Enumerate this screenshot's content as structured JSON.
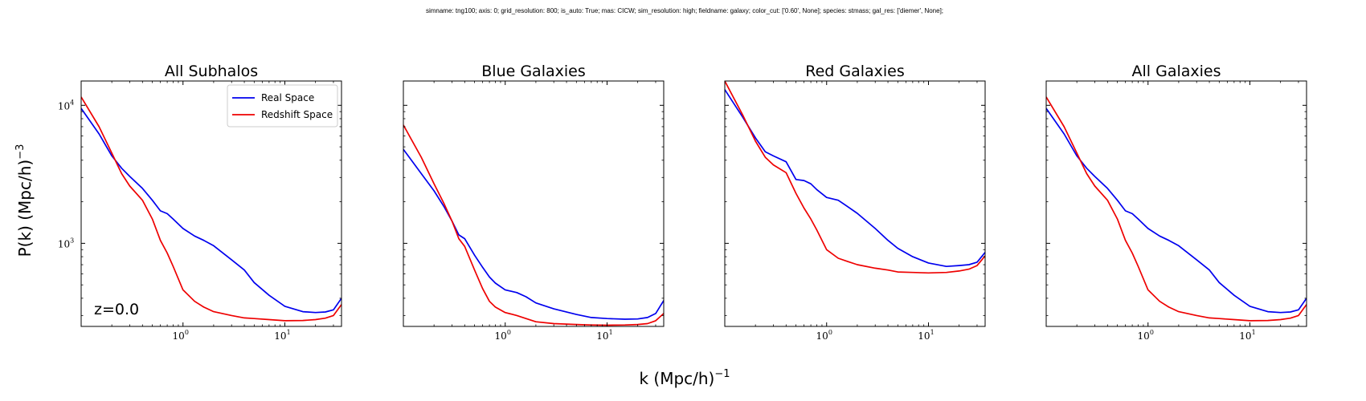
{
  "figure": {
    "suptitle": "simname: tng100; axis: 0; grid_resolution: 800; is_auto: True; mas: CICW; sim_resolution: high; fieldname: galaxy; color_cut: ['0.60', None]; species: stmass; gal_res: ['diemer', None];",
    "ylabel": "P(k) (Mpc/h)",
    "ylabel_exp": "−3",
    "xlabel": "k (Mpc/h)",
    "xlabel_exp": "−1"
  },
  "chart_data": [
    {
      "type": "line",
      "title": "All Subhalos",
      "xscale": "log",
      "yscale": "log",
      "xlim": [
        0.1,
        36
      ],
      "ylim": [
        250,
        15000
      ],
      "xticks": [
        {
          "base": "10",
          "exp": "0",
          "value": 1
        },
        {
          "base": "10",
          "exp": "1",
          "value": 10
        }
      ],
      "yticks": [
        {
          "base": "10",
          "exp": "3",
          "value": 1000
        },
        {
          "base": "10",
          "exp": "4",
          "value": 10000
        }
      ],
      "legend": {
        "position": "upper-right",
        "entries": [
          "Real Space",
          "Redshift Space"
        ]
      },
      "annotation": "z=0.0",
      "series": [
        {
          "name": "Real Space",
          "color": "#0000ee",
          "x": [
            0.1,
            0.15,
            0.2,
            0.25,
            0.3,
            0.4,
            0.5,
            0.6,
            0.7,
            0.8,
            1.0,
            1.3,
            1.6,
            2.0,
            3.0,
            4.0,
            5.0,
            7.0,
            10,
            15,
            20,
            25,
            30,
            36
          ],
          "y": [
            9500,
            6200,
            4300,
            3500,
            3050,
            2500,
            2050,
            1720,
            1640,
            1500,
            1280,
            1130,
            1050,
            960,
            760,
            640,
            520,
            420,
            350,
            320,
            315,
            318,
            330,
            400
          ]
        },
        {
          "name": "Redshift Space",
          "color": "#ee0000",
          "x": [
            0.1,
            0.15,
            0.2,
            0.25,
            0.3,
            0.4,
            0.5,
            0.6,
            0.7,
            0.8,
            1.0,
            1.3,
            1.6,
            2.0,
            3.0,
            4.0,
            5.0,
            7.0,
            10,
            15,
            20,
            25,
            30,
            36
          ],
          "y": [
            11500,
            7000,
            4500,
            3200,
            2600,
            2050,
            1500,
            1050,
            850,
            680,
            460,
            380,
            345,
            320,
            300,
            288,
            285,
            280,
            275,
            276,
            280,
            287,
            300,
            360
          ]
        }
      ]
    },
    {
      "type": "line",
      "title": "Blue Galaxies",
      "xscale": "log",
      "yscale": "log",
      "xlim": [
        0.1,
        36
      ],
      "ylim": [
        250,
        15000
      ],
      "xticks": [
        {
          "base": "10",
          "exp": "0",
          "value": 1
        },
        {
          "base": "10",
          "exp": "1",
          "value": 10
        }
      ],
      "series": [
        {
          "name": "Real Space",
          "color": "#0000ee",
          "x": [
            0.1,
            0.15,
            0.2,
            0.25,
            0.3,
            0.35,
            0.4,
            0.5,
            0.6,
            0.7,
            0.8,
            1.0,
            1.3,
            1.6,
            2.0,
            3.0,
            5.0,
            7.0,
            10,
            15,
            20,
            25,
            30,
            36
          ],
          "y": [
            4800,
            3200,
            2400,
            1850,
            1450,
            1150,
            1080,
            820,
            670,
            570,
            515,
            460,
            440,
            410,
            370,
            335,
            305,
            290,
            285,
            282,
            283,
            290,
            310,
            385
          ]
        },
        {
          "name": "Redshift Space",
          "color": "#ee0000",
          "x": [
            0.1,
            0.15,
            0.2,
            0.25,
            0.3,
            0.35,
            0.4,
            0.5,
            0.6,
            0.7,
            0.8,
            1.0,
            1.3,
            1.6,
            2.0,
            3.0,
            5.0,
            7.0,
            10,
            15,
            20,
            25,
            30,
            36
          ],
          "y": [
            7200,
            4200,
            2700,
            1950,
            1450,
            1080,
            950,
            640,
            470,
            380,
            345,
            315,
            300,
            285,
            270,
            262,
            258,
            256,
            255,
            256,
            258,
            262,
            275,
            310
          ]
        }
      ]
    },
    {
      "type": "line",
      "title": "Red Galaxies",
      "xscale": "log",
      "yscale": "log",
      "xlim": [
        0.1,
        36
      ],
      "ylim": [
        250,
        15000
      ],
      "xticks": [
        {
          "base": "10",
          "exp": "0",
          "value": 1
        },
        {
          "base": "10",
          "exp": "1",
          "value": 10
        }
      ],
      "series": [
        {
          "name": "Real Space",
          "color": "#0000ee",
          "x": [
            0.1,
            0.15,
            0.2,
            0.25,
            0.3,
            0.4,
            0.5,
            0.6,
            0.7,
            0.8,
            1.0,
            1.3,
            1.6,
            2.0,
            3.0,
            4.0,
            5.0,
            7.0,
            10,
            15,
            20,
            25,
            30,
            36
          ],
          "y": [
            13000,
            8200,
            5800,
            4600,
            4300,
            3900,
            2900,
            2850,
            2700,
            2450,
            2150,
            2050,
            1850,
            1650,
            1280,
            1050,
            920,
            800,
            720,
            680,
            690,
            700,
            730,
            860
          ]
        },
        {
          "name": "Redshift Space",
          "color": "#ee0000",
          "x": [
            0.1,
            0.15,
            0.2,
            0.25,
            0.3,
            0.4,
            0.5,
            0.6,
            0.7,
            0.8,
            1.0,
            1.3,
            1.6,
            2.0,
            3.0,
            4.0,
            5.0,
            7.0,
            10,
            15,
            20,
            25,
            30,
            36
          ],
          "y": [
            15000,
            8500,
            5500,
            4200,
            3700,
            3250,
            2300,
            1800,
            1500,
            1250,
            900,
            780,
            740,
            700,
            660,
            640,
            620,
            615,
            610,
            615,
            630,
            650,
            690,
            810
          ]
        }
      ]
    },
    {
      "type": "line",
      "title": "All Galaxies",
      "xscale": "log",
      "yscale": "log",
      "xlim": [
        0.1,
        36
      ],
      "ylim": [
        250,
        15000
      ],
      "xticks": [
        {
          "base": "10",
          "exp": "0",
          "value": 1
        },
        {
          "base": "10",
          "exp": "1",
          "value": 10
        }
      ],
      "series": [
        {
          "name": "Real Space",
          "color": "#0000ee",
          "x": [
            0.1,
            0.15,
            0.2,
            0.25,
            0.3,
            0.4,
            0.5,
            0.6,
            0.7,
            0.8,
            1.0,
            1.3,
            1.6,
            2.0,
            3.0,
            4.0,
            5.0,
            7.0,
            10,
            15,
            20,
            25,
            30,
            36
          ],
          "y": [
            9500,
            6200,
            4300,
            3500,
            3050,
            2500,
            2050,
            1720,
            1640,
            1500,
            1280,
            1130,
            1050,
            960,
            760,
            640,
            520,
            420,
            350,
            320,
            315,
            318,
            330,
            400
          ]
        },
        {
          "name": "Redshift Space",
          "color": "#ee0000",
          "x": [
            0.1,
            0.15,
            0.2,
            0.25,
            0.3,
            0.4,
            0.5,
            0.6,
            0.7,
            0.8,
            1.0,
            1.3,
            1.6,
            2.0,
            3.0,
            4.0,
            5.0,
            7.0,
            10,
            15,
            20,
            25,
            30,
            36
          ],
          "y": [
            11500,
            7000,
            4500,
            3200,
            2600,
            2050,
            1500,
            1050,
            850,
            680,
            460,
            380,
            345,
            320,
            300,
            288,
            285,
            280,
            275,
            276,
            280,
            287,
            300,
            360
          ]
        }
      ]
    }
  ]
}
